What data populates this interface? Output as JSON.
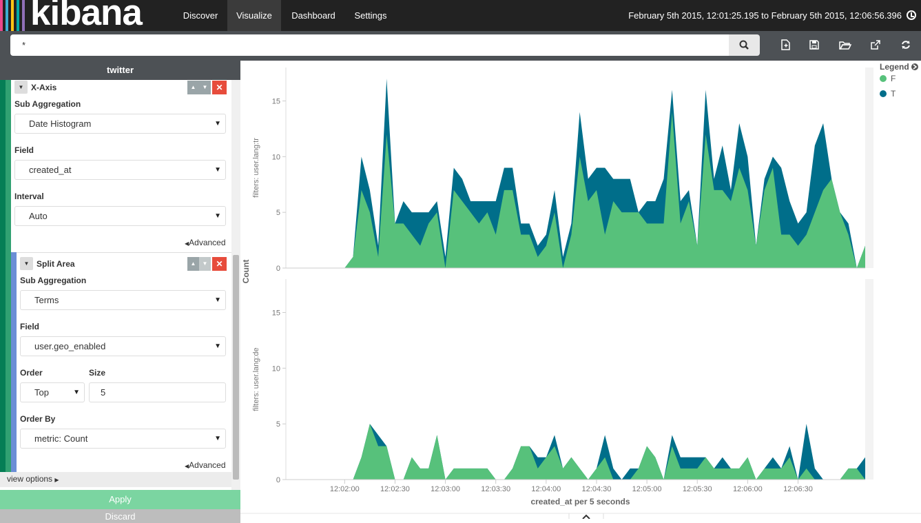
{
  "app": {
    "name": "kibana"
  },
  "nav": {
    "items": [
      {
        "label": "Discover"
      },
      {
        "label": "Visualize",
        "active": true
      },
      {
        "label": "Dashboard"
      },
      {
        "label": "Settings"
      }
    ]
  },
  "timerange": "February 5th 2015, 12:01:25.195 to February 5th 2015, 12:06:56.396",
  "search": {
    "value": "*"
  },
  "toolbar": {
    "icons": [
      "new-visualization-icon",
      "save-icon",
      "open-folder-icon",
      "share-icon",
      "refresh-icon"
    ]
  },
  "sidebar": {
    "index_title": "twitter",
    "x_axis": {
      "title": "X-Axis",
      "sub_agg_label": "Sub Aggregation",
      "sub_agg_value": "Date Histogram",
      "field_label": "Field",
      "field_value": "created_at",
      "interval_label": "Interval",
      "interval_value": "Auto",
      "advanced": "Advanced"
    },
    "split_area": {
      "title": "Split Area",
      "sub_agg_label": "Sub Aggregation",
      "sub_agg_value": "Terms",
      "field_label": "Field",
      "field_value": "user.geo_enabled",
      "order_label": "Order",
      "order_value": "Top",
      "size_label": "Size",
      "size_value": "5",
      "order_by_label": "Order By",
      "order_by_value": "metric: Count",
      "advanced": "Advanced"
    },
    "view_options": "view options",
    "apply": "Apply",
    "discard": "Discard"
  },
  "colors": {
    "F": "#57c17b",
    "T": "#006e8a",
    "brand": [
      "#e8488b",
      "#3caed2",
      "#fec514",
      "#00a9a5",
      "#9170b8"
    ]
  },
  "chart_data": {
    "type": "area",
    "stacked": true,
    "xlabel": "created_at per 5 seconds",
    "ylabel": "Count",
    "x_ticks": [
      "12:02:00",
      "12:02:30",
      "12:03:00",
      "12:03:30",
      "12:04:00",
      "12:04:30",
      "12:05:00",
      "12:05:30",
      "12:06:00",
      "12:06:30"
    ],
    "yticks": [
      0,
      5,
      10,
      15
    ],
    "ylim": [
      0,
      18
    ],
    "x_start": "12:01:25",
    "x_step_seconds": 5,
    "legend": {
      "title": "Legend",
      "position": "top-right",
      "items": [
        "F",
        "T"
      ]
    },
    "panels": [
      {
        "label": "filters: user.lang:tr",
        "series": [
          {
            "name": "F",
            "values": [
              0,
              0,
              0,
              0,
              0,
              0,
              0,
              0,
              1,
              7,
              5,
              1,
              12,
              4,
              4,
              3,
              2,
              4,
              5,
              0,
              7,
              6,
              5,
              4,
              5,
              3,
              7,
              7,
              3,
              3,
              1,
              2,
              5,
              0,
              3,
              10,
              6,
              7,
              3,
              6,
              5,
              5,
              5,
              4,
              4,
              4,
              14,
              4,
              6,
              2,
              12,
              7,
              7,
              6,
              9,
              7,
              2,
              7,
              9,
              3,
              3,
              2,
              3,
              5,
              7,
              8,
              5,
              3,
              0,
              2
            ]
          },
          {
            "name": "T",
            "values": [
              0,
              0,
              0,
              0,
              0,
              0,
              0,
              0,
              0,
              3,
              2,
              1,
              5,
              0,
              2,
              2,
              3,
              1,
              1,
              1,
              2,
              2,
              1,
              2,
              1,
              3,
              2,
              2,
              1,
              1,
              1,
              1,
              2,
              1,
              1,
              4,
              2,
              2,
              6,
              2,
              3,
              3,
              0,
              2,
              2,
              4,
              2,
              2,
              1,
              0,
              4,
              1,
              4,
              1,
              4,
              3,
              0,
              1,
              1,
              6,
              3,
              2,
              2,
              6,
              6,
              0,
              0,
              1,
              0,
              0
            ]
          }
        ]
      },
      {
        "label": "filters: user.lang:de",
        "series": [
          {
            "name": "F",
            "values": [
              0,
              0,
              0,
              0,
              0,
              0,
              0,
              0,
              0,
              2,
              5,
              3,
              3,
              0,
              0,
              2,
              1,
              1,
              4,
              0,
              1,
              1,
              1,
              1,
              1,
              0,
              0,
              1,
              3,
              3,
              1,
              2,
              3,
              1,
              2,
              1,
              0,
              1,
              2,
              0,
              0,
              0,
              1,
              3,
              2,
              0,
              3,
              1,
              1,
              1,
              2,
              1,
              1,
              1,
              1,
              2,
              0,
              1,
              1,
              1,
              2,
              0,
              1,
              0,
              0,
              0,
              0,
              1,
              1,
              0
            ]
          },
          {
            "name": "T",
            "values": [
              0,
              0,
              0,
              0,
              0,
              0,
              0,
              0,
              0,
              0,
              0,
              1,
              0,
              0,
              0,
              0,
              0,
              0,
              0,
              0,
              0,
              0,
              0,
              0,
              0,
              0,
              0,
              0,
              0,
              0,
              1,
              0,
              1,
              0,
              0,
              0,
              0,
              0,
              2,
              1,
              0,
              1,
              0,
              0,
              0,
              0,
              1,
              1,
              1,
              1,
              0,
              0,
              1,
              0,
              0,
              0,
              0,
              0,
              1,
              0,
              1,
              0,
              4,
              1,
              0,
              0,
              0,
              0,
              0,
              2
            ]
          }
        ]
      }
    ]
  }
}
